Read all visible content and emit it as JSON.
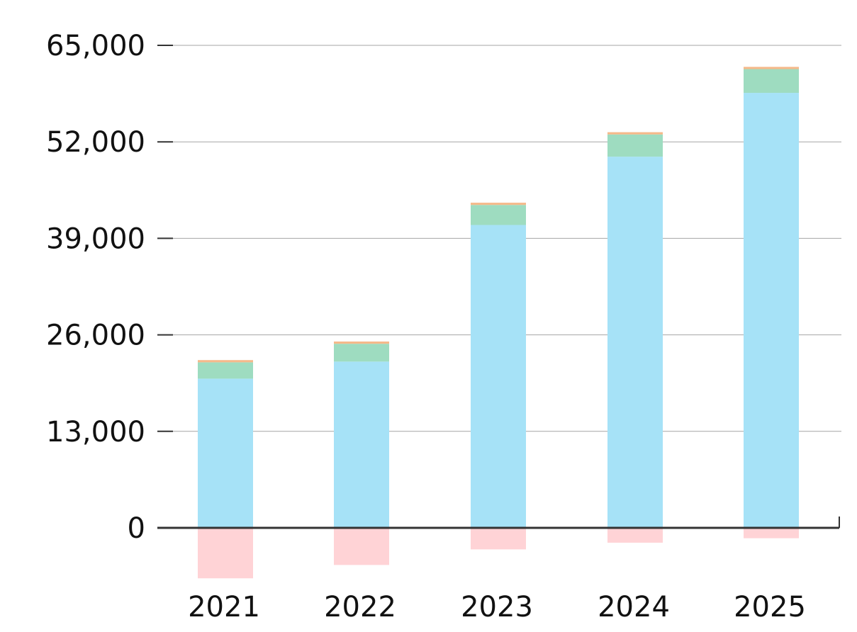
{
  "chart_data": {
    "type": "bar",
    "stacked": true,
    "categories": [
      "2021",
      "2022",
      "2023",
      "2024",
      "2025"
    ],
    "series": [
      {
        "color": "#a6e2f7",
        "values": [
          20100,
          22400,
          40800,
          50000,
          58600
        ]
      },
      {
        "color": "#9edcc0",
        "values": [
          2200,
          2400,
          2700,
          3000,
          3200
        ]
      },
      {
        "color": "#f5b98a",
        "values": [
          300,
          300,
          300,
          300,
          300
        ]
      },
      {
        "color": "#ffd3d6",
        "values": [
          -6800,
          -5000,
          -2900,
          -2000,
          -1400
        ]
      }
    ],
    "y_ticks": [
      0,
      13000,
      26000,
      39000,
      52000,
      65000
    ],
    "y_tick_labels": [
      "0",
      "13,000",
      "26,000",
      "39,000",
      "52,000",
      "65,000"
    ],
    "ylim": [
      -8500,
      65000
    ],
    "grid": true,
    "legend": "none"
  }
}
